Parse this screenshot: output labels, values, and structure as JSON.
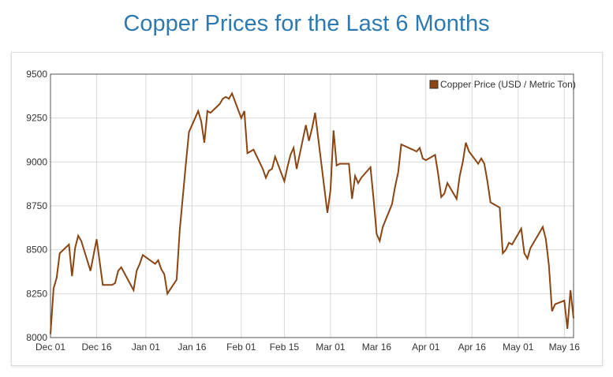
{
  "title": "Copper Prices for the Last 6 Months",
  "legend_label": "Copper Price (USD / Metric Ton)",
  "colors": {
    "series": "#8b4513",
    "title": "#2e7ab0",
    "grid": "#d9d9d9"
  },
  "chart_data": {
    "type": "line",
    "title": "Copper Prices for the Last 6 Months",
    "xlabel": "",
    "ylabel": "",
    "ylim": [
      8000,
      9500
    ],
    "xlim": [
      "2015-12-01",
      "2016-05-19"
    ],
    "grid": true,
    "legend_position": "top-right",
    "y_ticks": [
      8000,
      8250,
      8500,
      8750,
      9000,
      9250,
      9500
    ],
    "x_ticks": [
      {
        "label": "Dec 01",
        "date": "2015-12-01"
      },
      {
        "label": "Dec 16",
        "date": "2015-12-16"
      },
      {
        "label": "Jan 01",
        "date": "2016-01-01"
      },
      {
        "label": "Jan 16",
        "date": "2016-01-16"
      },
      {
        "label": "Feb 01",
        "date": "2016-02-01"
      },
      {
        "label": "Feb 15",
        "date": "2016-02-15"
      },
      {
        "label": "Mar 01",
        "date": "2016-03-01"
      },
      {
        "label": "Mar 16",
        "date": "2016-03-16"
      },
      {
        "label": "Apr 01",
        "date": "2016-04-01"
      },
      {
        "label": "Apr 16",
        "date": "2016-04-16"
      },
      {
        "label": "May 01",
        "date": "2016-05-01"
      },
      {
        "label": "May 16",
        "date": "2016-05-16"
      }
    ],
    "series": [
      {
        "name": "Copper Price (USD / Metric Ton)",
        "x": [
          "2015-12-01",
          "2015-12-02",
          "2015-12-03",
          "2015-12-04",
          "2015-12-07",
          "2015-12-08",
          "2015-12-09",
          "2015-12-10",
          "2015-12-11",
          "2015-12-14",
          "2015-12-15",
          "2015-12-16",
          "2015-12-18",
          "2015-12-21",
          "2015-12-22",
          "2015-12-23",
          "2015-12-24",
          "2015-12-28",
          "2015-12-29",
          "2015-12-30",
          "2015-12-31",
          "2016-01-04",
          "2016-01-05",
          "2016-01-06",
          "2016-01-07",
          "2016-01-08",
          "2016-01-11",
          "2016-01-12",
          "2016-01-13",
          "2016-01-14",
          "2016-01-15",
          "2016-01-18",
          "2016-01-19",
          "2016-01-20",
          "2016-01-21",
          "2016-01-22",
          "2016-01-25",
          "2016-01-26",
          "2016-01-27",
          "2016-01-28",
          "2016-01-29",
          "2016-02-01",
          "2016-02-02",
          "2016-02-03",
          "2016-02-05",
          "2016-02-08",
          "2016-02-09",
          "2016-02-10",
          "2016-02-11",
          "2016-02-12",
          "2016-02-15",
          "2016-02-16",
          "2016-02-17",
          "2016-02-18",
          "2016-02-19",
          "2016-02-22",
          "2016-02-23",
          "2016-02-24",
          "2016-02-25",
          "2016-02-29",
          "2016-03-01",
          "2016-03-02",
          "2016-03-03",
          "2016-03-04",
          "2016-03-07",
          "2016-03-08",
          "2016-03-09",
          "2016-03-10",
          "2016-03-11",
          "2016-03-14",
          "2016-03-15",
          "2016-03-16",
          "2016-03-17",
          "2016-03-18",
          "2016-03-21",
          "2016-03-22",
          "2016-03-23",
          "2016-03-24",
          "2016-03-29",
          "2016-03-30",
          "2016-03-31",
          "2016-04-01",
          "2016-04-04",
          "2016-04-05",
          "2016-04-06",
          "2016-04-07",
          "2016-04-08",
          "2016-04-11",
          "2016-04-12",
          "2016-04-13",
          "2016-04-14",
          "2016-04-15",
          "2016-04-18",
          "2016-04-19",
          "2016-04-20",
          "2016-04-21",
          "2016-04-22",
          "2016-04-25",
          "2016-04-26",
          "2016-04-27",
          "2016-04-28",
          "2016-04-29",
          "2016-05-02",
          "2016-05-03",
          "2016-05-04",
          "2016-05-05",
          "2016-05-06",
          "2016-05-09",
          "2016-05-10",
          "2016-05-11",
          "2016-05-12",
          "2016-05-13",
          "2016-05-16",
          "2016-05-17",
          "2016-05-18",
          "2016-05-19"
        ],
        "values": [
          8020,
          8280,
          8340,
          8480,
          8530,
          8350,
          8510,
          8580,
          8550,
          8380,
          8470,
          8560,
          8300,
          8300,
          8310,
          8380,
          8400,
          8270,
          8380,
          8420,
          8470,
          8420,
          8440,
          8390,
          8360,
          8250,
          8330,
          8610,
          8800,
          8990,
          9170,
          9290,
          9230,
          9110,
          9290,
          9280,
          9330,
          9360,
          9370,
          9360,
          9390,
          9250,
          9290,
          9050,
          9070,
          8960,
          8910,
          8950,
          8960,
          9030,
          8890,
          8970,
          9040,
          9080,
          8960,
          9210,
          9120,
          9190,
          9280,
          8710,
          8840,
          9180,
          8980,
          8990,
          8990,
          8790,
          8920,
          8880,
          8910,
          8970,
          8790,
          8590,
          8550,
          8630,
          8760,
          8860,
          8940,
          9100,
          9060,
          9080,
          9020,
          9010,
          9040,
          8930,
          8800,
          8820,
          8880,
          8790,
          8920,
          9000,
          9110,
          9060,
          8990,
          9020,
          8990,
          8890,
          8770,
          8740,
          8480,
          8500,
          8540,
          8530,
          8620,
          8480,
          8450,
          8510,
          8540,
          8630,
          8560,
          8410,
          8150,
          8190,
          8210,
          8050,
          8270,
          8110
        ]
      }
    ]
  }
}
